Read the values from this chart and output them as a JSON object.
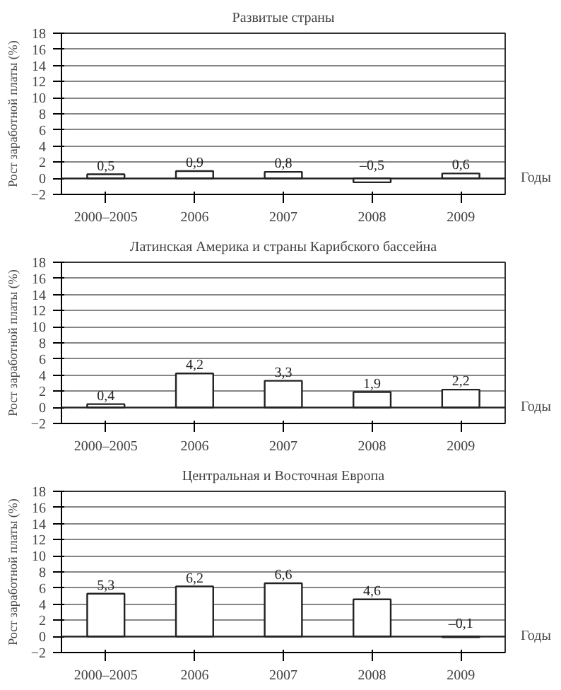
{
  "chart_data": [
    {
      "type": "bar",
      "title": "Развитые страны",
      "ylabel": "Рост заработной платы (%)",
      "xlabel": "Годы",
      "categories": [
        "2000–2005",
        "2006",
        "2007",
        "2008",
        "2009"
      ],
      "values": [
        0.5,
        0.9,
        0.8,
        -0.5,
        0.6
      ],
      "value_labels": [
        "0,5",
        "0,9",
        "0,8",
        "–0,5",
        "0,6"
      ],
      "color": "#ffffff",
      "ylim": [
        -2,
        18
      ],
      "yticks": [
        -2,
        0,
        2,
        4,
        6,
        8,
        10,
        12,
        14,
        16,
        18
      ],
      "grid": "y"
    },
    {
      "type": "bar",
      "title": "Латинская Америка и страны Карибского бассейна",
      "ylabel": "Рост заработной платы (%)",
      "xlabel": "Годы",
      "categories": [
        "2000–2005",
        "2006",
        "2007",
        "2008",
        "2009"
      ],
      "values": [
        0.4,
        4.2,
        3.3,
        1.9,
        2.2
      ],
      "value_labels": [
        "0,4",
        "4,2",
        "3,3",
        "1,9",
        "2,2"
      ],
      "color": "#ffffff",
      "ylim": [
        -2,
        18
      ],
      "yticks": [
        -2,
        0,
        2,
        4,
        6,
        8,
        10,
        12,
        14,
        16,
        18
      ],
      "grid": "y"
    },
    {
      "type": "bar",
      "title": "Центральная и Восточная Европа",
      "ylabel": "Рост заработной платы (%)",
      "xlabel": "Годы",
      "categories": [
        "2000–2005",
        "2006",
        "2007",
        "2008",
        "2009"
      ],
      "values": [
        5.3,
        6.2,
        6.6,
        4.6,
        -0.1
      ],
      "value_labels": [
        "5,3",
        "6,2",
        "6,6",
        "4,6",
        "–0,1"
      ],
      "color": "#ffffff",
      "ylim": [
        -2,
        18
      ],
      "yticks": [
        -2,
        0,
        2,
        4,
        6,
        8,
        10,
        12,
        14,
        16,
        18
      ],
      "grid": "y"
    }
  ]
}
